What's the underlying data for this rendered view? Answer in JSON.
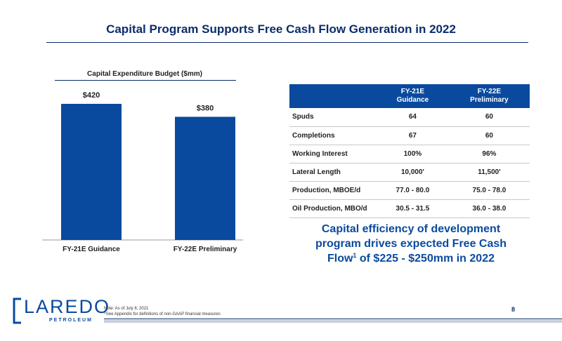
{
  "slide": {
    "title": "Capital Program Supports Free Cash Flow Generation in 2022",
    "page_number": "8"
  },
  "chart_data": {
    "type": "bar",
    "title": "Capital Expenditure Budget ($mm)",
    "categories": [
      "FY-21E Guidance",
      "FY-22E Preliminary"
    ],
    "values": [
      420,
      380
    ],
    "data_labels": [
      "$420",
      "$380"
    ],
    "bar_color": "#0a4a9e",
    "ylim": [
      0,
      420
    ],
    "grid": false,
    "xlabel": "",
    "ylabel": ""
  },
  "table": {
    "headers": [
      "",
      "FY-21E\nGuidance",
      "FY-22E\nPreliminary"
    ],
    "rows": [
      [
        "Spuds",
        "64",
        "60"
      ],
      [
        "Completions",
        "67",
        "60"
      ],
      [
        "Working Interest",
        "100%",
        "96%"
      ],
      [
        "Lateral Length",
        "10,000'",
        "11,500'"
      ],
      [
        "Production, MBOE/d",
        "77.0 - 80.0",
        "75.0 - 78.0"
      ],
      [
        "Oil Production, MBO/d",
        "30.5 - 31.5",
        "36.0 - 38.0"
      ]
    ]
  },
  "callout": {
    "line1": "Capital efficiency of development",
    "line2": "program drives expected Free Cash",
    "line3_pre": "Flow",
    "line3_sup": "1",
    "line3_post": " of $225 - $250mm in 2022"
  },
  "footer": {
    "logo_word": "LAREDO",
    "logo_sub": "PETROLEUM",
    "note_line1": "Note: As of July 8, 2021",
    "note_sup": "1",
    "note_line2": "See Appendix for definitions of non-GAAP financial measures"
  },
  "colors": {
    "brand_blue": "#0a4a9e",
    "navy": "#0b2d6b"
  }
}
